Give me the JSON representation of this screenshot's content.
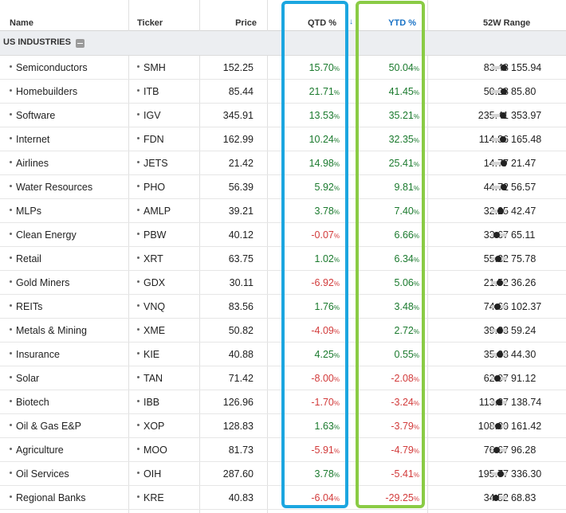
{
  "header": {
    "name": "Name",
    "ticker": "Ticker",
    "price": "Price",
    "qtd": "QTD %",
    "ytd": "YTD %",
    "range": "52W Range",
    "sort_arrow": "↓"
  },
  "section": {
    "label": "US INDUSTRIES"
  },
  "colors": {
    "positive": "#1b7a2e",
    "negative": "#d23b3b",
    "active_sort": "#1a73c6",
    "highlight_qtd": "#1ba6e0",
    "highlight_ytd": "#8acb45"
  },
  "rows": [
    {
      "name": "Semiconductors",
      "ticker": "SMH",
      "price": "152.25",
      "qtd": "15.70",
      "ytd": "50.04",
      "low": "83.48",
      "high": "155.94",
      "position": 0.98
    },
    {
      "name": "Homebuilders",
      "ticker": "ITB",
      "price": "85.44",
      "qtd": "21.71",
      "ytd": "41.45",
      "low": "50.28",
      "high": "85.80",
      "position": 0.99
    },
    {
      "name": "Software",
      "ticker": "IGV",
      "price": "345.91",
      "qtd": "13.53",
      "ytd": "35.21",
      "low": "235.41",
      "high": "353.97",
      "position": 0.93
    },
    {
      "name": "Internet",
      "ticker": "FDN",
      "price": "162.99",
      "qtd": "10.24",
      "ytd": "32.35",
      "low": "114.86",
      "high": "165.48",
      "position": 0.95
    },
    {
      "name": "Airlines",
      "ticker": "JETS",
      "price": "21.42",
      "qtd": "14.98",
      "ytd": "25.41",
      "low": "14.77",
      "high": "21.47",
      "position": 0.99
    },
    {
      "name": "Water Resources",
      "ticker": "PHO",
      "price": "56.39",
      "qtd": "5.92",
      "ytd": "9.81",
      "low": "44.72",
      "high": "56.57",
      "position": 0.98
    },
    {
      "name": "MLPs",
      "ticker": "AMLP",
      "price": "39.21",
      "qtd": "3.78",
      "ytd": "7.40",
      "low": "32.25",
      "high": "42.47",
      "position": 0.68
    },
    {
      "name": "Clean Energy",
      "ticker": "PBW",
      "price": "40.12",
      "qtd": "-0.07",
      "ytd": "6.66",
      "low": "33.67",
      "high": "65.11",
      "position": 0.21
    },
    {
      "name": "Retail",
      "ticker": "XRT",
      "price": "63.75",
      "qtd": "1.02",
      "ytd": "6.34",
      "low": "55.32",
      "high": "75.78",
      "position": 0.41
    },
    {
      "name": "Gold Miners",
      "ticker": "GDX",
      "price": "30.11",
      "qtd": "-6.92",
      "ytd": "5.06",
      "low": "21.52",
      "high": "36.26",
      "position": 0.58
    },
    {
      "name": "REITs",
      "ticker": "VNQ",
      "price": "83.56",
      "qtd": "1.76",
      "ytd": "3.48",
      "low": "74.66",
      "high": "102.37",
      "position": 0.32
    },
    {
      "name": "Metals & Mining",
      "ticker": "XME",
      "price": "50.82",
      "qtd": "-4.09",
      "ytd": "2.72",
      "low": "39.83",
      "high": "59.24",
      "position": 0.57
    },
    {
      "name": "Insurance",
      "ticker": "KIE",
      "price": "40.88",
      "qtd": "4.25",
      "ytd": "0.55",
      "low": "35.38",
      "high": "44.30",
      "position": 0.62
    },
    {
      "name": "Solar",
      "ticker": "TAN",
      "price": "71.42",
      "qtd": "-8.00",
      "ytd": "-2.08",
      "low": "62.97",
      "high": "91.12",
      "position": 0.3
    },
    {
      "name": "Biotech",
      "ticker": "IBB",
      "price": "126.96",
      "qtd": "-1.70",
      "ytd": "-3.24",
      "low": "113.37",
      "high": "138.74",
      "position": 0.54
    },
    {
      "name": "Oil & Gas E&P",
      "ticker": "XOP",
      "price": "128.83",
      "qtd": "1.63",
      "ytd": "-3.79",
      "low": "108.00",
      "high": "161.42",
      "position": 0.39
    },
    {
      "name": "Agriculture",
      "ticker": "MOO",
      "price": "81.73",
      "qtd": "-5.91",
      "ytd": "-4.79",
      "low": "76.67",
      "high": "96.28",
      "position": 0.26
    },
    {
      "name": "Oil Services",
      "ticker": "OIH",
      "price": "287.60",
      "qtd": "3.78",
      "ytd": "-5.41",
      "low": "195.77",
      "high": "336.30",
      "position": 0.65
    },
    {
      "name": "Regional Banks",
      "ticker": "KRE",
      "price": "40.83",
      "qtd": "-6.04",
      "ytd": "-29.25",
      "low": "34.52",
      "high": "68.83",
      "position": 0.18
    }
  ]
}
